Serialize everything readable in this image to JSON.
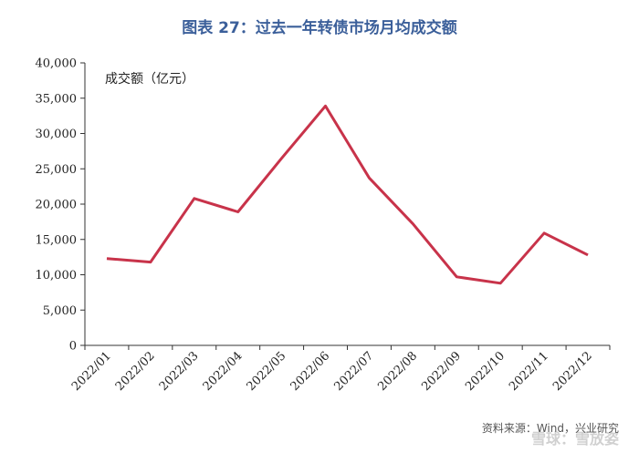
{
  "chart_data": {
    "type": "line",
    "title": "图表 27：过去一年转债市场月均成交额",
    "series_label": "成交额（亿元）",
    "ylim": [
      0,
      40000
    ],
    "y_ticks": [
      "0",
      "5,000",
      "10,000",
      "15,000",
      "20,000",
      "25,000",
      "30,000",
      "35,000",
      "40,000"
    ],
    "y_tick_values": [
      0,
      5000,
      10000,
      15000,
      20000,
      25000,
      30000,
      35000,
      40000
    ],
    "categories": [
      "2022/01",
      "2022/02",
      "2022/03",
      "2022/04",
      "2022/05",
      "2022/06",
      "2022/07",
      "2022/08",
      "2022/09",
      "2022/10",
      "2022/11",
      "2022/12"
    ],
    "series": [
      {
        "values": [
          12300,
          11800,
          20800,
          18900,
          26500,
          33900,
          23700,
          17200,
          9700,
          8800,
          15900,
          12800
        ]
      }
    ],
    "grid": false,
    "line_color": "#c8334a"
  },
  "source": "资料来源：Wind，兴业研究",
  "watermark": "雪球：雪放姿"
}
